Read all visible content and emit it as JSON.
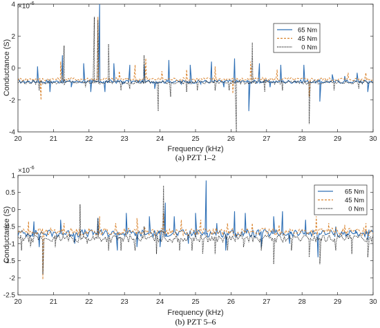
{
  "chart_data": [
    {
      "type": "line",
      "title": "",
      "caption": "(a) PZT 1–2",
      "xlabel": "Frequency (kHz)",
      "ylabel": "Conductance (S)",
      "y_multiplier": "×10",
      "y_exponent": "-6",
      "xlim": [
        20,
        30
      ],
      "ylim": [
        -4,
        4
      ],
      "xticks": [
        20,
        21,
        22,
        23,
        24,
        25,
        26,
        27,
        28,
        29,
        30
      ],
      "yticks": [
        -4,
        -2,
        0,
        2,
        4
      ],
      "grid": false,
      "legend_position": "top-right",
      "series": [
        {
          "name": "65 Nm",
          "color": "#2e6fb5",
          "dash": "solid",
          "baseline": -0.85,
          "spikes": [
            [
              20.55,
              0.1
            ],
            [
              20.9,
              -1.5
            ],
            [
              21.25,
              0.8
            ],
            [
              21.5,
              -1.2
            ],
            [
              21.85,
              0.3
            ],
            [
              22.05,
              -1.5
            ],
            [
              22.3,
              4.0
            ],
            [
              22.45,
              -1.5
            ],
            [
              22.7,
              0.3
            ],
            [
              22.95,
              -1.0
            ],
            [
              23.15,
              0.2
            ],
            [
              23.55,
              0.2
            ],
            [
              23.85,
              -1.3
            ],
            [
              24.25,
              0.5
            ],
            [
              24.6,
              -1.0
            ],
            [
              24.85,
              0.2
            ],
            [
              25.15,
              -1.0
            ],
            [
              25.45,
              0.4
            ],
            [
              25.8,
              -1.2
            ],
            [
              26.1,
              0.6
            ],
            [
              26.5,
              -2.7
            ],
            [
              26.8,
              0.3
            ],
            [
              27.1,
              -1.2
            ],
            [
              27.4,
              0.2
            ],
            [
              27.8,
              -0.8
            ],
            [
              28.05,
              0.2
            ],
            [
              28.5,
              -2.1
            ],
            [
              28.85,
              -0.4
            ],
            [
              29.2,
              -0.5
            ],
            [
              29.55,
              -0.3
            ],
            [
              29.85,
              -1.5
            ]
          ]
        },
        {
          "name": "45 Nm",
          "color": "#d9822b",
          "dash": "dashed",
          "baseline": -0.7,
          "spikes": [
            [
              20.65,
              -2.0
            ],
            [
              21.2,
              0.4
            ],
            [
              22.25,
              3.2
            ],
            [
              22.85,
              -0.2
            ],
            [
              23.3,
              0.2
            ],
            [
              23.6,
              0.6
            ],
            [
              24.05,
              -0.2
            ],
            [
              24.75,
              -0.1
            ],
            [
              25.55,
              0.1
            ],
            [
              26.05,
              -1.6
            ],
            [
              26.55,
              0.4
            ],
            [
              27.3,
              -0.1
            ],
            [
              28.2,
              -1.8
            ],
            [
              29.3,
              -0.3
            ],
            [
              29.8,
              -0.3
            ]
          ]
        },
        {
          "name": "0 Nm",
          "color": "#1a1a1a",
          "dash": "dotted",
          "baseline": -0.9,
          "spikes": [
            [
              20.6,
              -1.4
            ],
            [
              21.3,
              1.4
            ],
            [
              21.9,
              -1.2
            ],
            [
              22.15,
              3.2
            ],
            [
              22.25,
              3.0
            ],
            [
              22.55,
              1.5
            ],
            [
              22.9,
              -1.4
            ],
            [
              23.15,
              -1.3
            ],
            [
              23.55,
              0.8
            ],
            [
              23.95,
              -2.7
            ],
            [
              24.3,
              -1.8
            ],
            [
              24.75,
              -1.5
            ],
            [
              25.05,
              -1.4
            ],
            [
              25.55,
              -1.4
            ],
            [
              25.95,
              -1.4
            ],
            [
              26.15,
              -4.0
            ],
            [
              26.6,
              1.6
            ],
            [
              26.95,
              -1.5
            ],
            [
              27.45,
              -1.4
            ],
            [
              28.2,
              -3.5
            ],
            [
              28.9,
              -1.4
            ],
            [
              29.6,
              -1.3
            ]
          ]
        }
      ]
    },
    {
      "type": "line",
      "title": "",
      "caption": "(b) PZT 5–6",
      "xlabel": "Frequency (kHz)",
      "ylabel": "Conductance (S)",
      "y_multiplier": "×10",
      "y_exponent": "-6",
      "xlim": [
        20,
        30
      ],
      "ylim": [
        -2.5,
        1
      ],
      "xticks": [
        20,
        21,
        22,
        23,
        24,
        25,
        26,
        27,
        28,
        29,
        30
      ],
      "yticks": [
        -2.5,
        -2,
        -1.5,
        -1,
        -0.5,
        0,
        0.5,
        1
      ],
      "grid": false,
      "legend_position": "top-right",
      "series": [
        {
          "name": "65 Nm",
          "color": "#2e6fb5",
          "dash": "solid",
          "baseline": -0.7,
          "spikes": [
            [
              20.45,
              -0.35
            ],
            [
              20.6,
              -1.1
            ],
            [
              21.2,
              -0.3
            ],
            [
              21.6,
              -1.0
            ],
            [
              22.25,
              -0.25
            ],
            [
              22.8,
              -1.2
            ],
            [
              23.05,
              -0.1
            ],
            [
              23.35,
              -1.1
            ],
            [
              23.7,
              -0.2
            ],
            [
              24.0,
              -1.1
            ],
            [
              24.15,
              0.2
            ],
            [
              24.4,
              -0.2
            ],
            [
              24.8,
              -1.0
            ],
            [
              25.0,
              -0.1
            ],
            [
              25.3,
              0.85
            ],
            [
              25.6,
              -0.4
            ],
            [
              25.85,
              -1.2
            ],
            [
              26.1,
              -0.05
            ],
            [
              26.4,
              -0.1
            ],
            [
              26.85,
              -1.1
            ],
            [
              27.2,
              -0.2
            ],
            [
              27.45,
              -0.05
            ],
            [
              27.65,
              -1.0
            ],
            [
              28.1,
              -0.3
            ],
            [
              28.45,
              -1.4
            ],
            [
              28.95,
              -0.5
            ],
            [
              29.5,
              -0.6
            ],
            [
              29.85,
              -0.9
            ]
          ]
        },
        {
          "name": "45 Nm",
          "color": "#d9822b",
          "dash": "dashed",
          "baseline": -0.65,
          "spikes": [
            [
              20.3,
              -0.35
            ],
            [
              20.7,
              -2.05
            ],
            [
              21.3,
              -0.4
            ],
            [
              22.3,
              -0.2
            ],
            [
              22.75,
              -0.4
            ],
            [
              23.35,
              -0.25
            ],
            [
              24.1,
              -0.1
            ],
            [
              24.6,
              -0.3
            ],
            [
              25.15,
              -0.3
            ],
            [
              25.9,
              -0.4
            ],
            [
              26.6,
              -0.4
            ],
            [
              27.35,
              -0.45
            ],
            [
              28.4,
              -0.2
            ],
            [
              28.75,
              -0.4
            ],
            [
              29.2,
              -0.45
            ],
            [
              29.8,
              -0.4
            ]
          ]
        },
        {
          "name": "0 Nm",
          "color": "#1a1a1a",
          "dash": "dotted",
          "baseline": -0.85,
          "spikes": [
            [
              20.1,
              -1.2
            ],
            [
              20.35,
              -1.1
            ],
            [
              20.7,
              -1.9
            ],
            [
              21.05,
              -1.1
            ],
            [
              21.75,
              0.15
            ],
            [
              21.95,
              -1.0
            ],
            [
              22.25,
              -0.25
            ],
            [
              22.55,
              -1.2
            ],
            [
              22.9,
              -1.2
            ],
            [
              23.3,
              -1.2
            ],
            [
              23.55,
              -0.5
            ],
            [
              23.9,
              -1.3
            ],
            [
              24.1,
              0.7
            ],
            [
              24.55,
              -1.2
            ],
            [
              24.9,
              -1.2
            ],
            [
              25.2,
              -1.3
            ],
            [
              25.55,
              -1.3
            ],
            [
              25.9,
              -1.2
            ],
            [
              26.35,
              -1.1
            ],
            [
              26.85,
              -1.2
            ],
            [
              27.2,
              -1.6
            ],
            [
              27.7,
              -1.2
            ],
            [
              28.2,
              -1.4
            ],
            [
              28.5,
              -1.6
            ],
            [
              28.95,
              -1.2
            ],
            [
              29.4,
              -1.3
            ],
            [
              29.85,
              -1.4
            ],
            [
              30.0,
              -1.9
            ]
          ]
        }
      ]
    }
  ]
}
